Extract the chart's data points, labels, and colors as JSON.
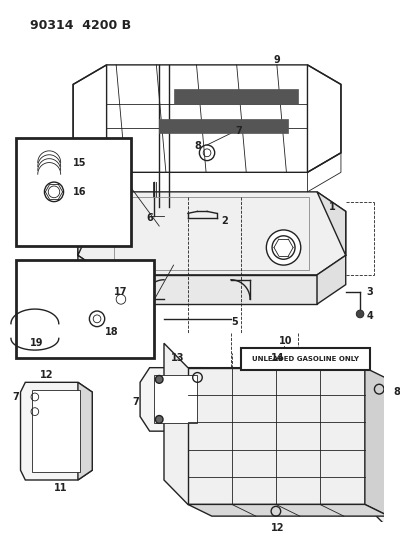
{
  "title": "90314  4200 B",
  "bg_color": "#ffffff",
  "line_color": "#222222",
  "fig_width": 4.0,
  "fig_height": 5.33,
  "dpi": 100,
  "unleaded_text": "UNLEADED GASOLINE ONLY",
  "label15": "15",
  "label16": "16",
  "label17": "17",
  "label18": "18",
  "label19": "19"
}
